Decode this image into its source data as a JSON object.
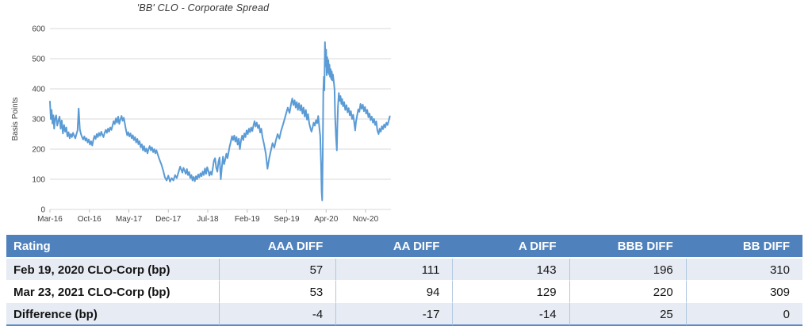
{
  "chart_data": {
    "type": "line",
    "title": "'BB' CLO - Corporate Spread",
    "xlabel": "",
    "ylabel": "Basis Points",
    "ylim": [
      0,
      600
    ],
    "yticks": [
      0,
      100,
      200,
      300,
      400,
      500,
      600
    ],
    "x_unit": "months since Mar-2016",
    "xlim": [
      0,
      60.5
    ],
    "xticks": [
      {
        "m": 0,
        "label": "Mar-16"
      },
      {
        "m": 7,
        "label": "Oct-16"
      },
      {
        "m": 14,
        "label": "May-17"
      },
      {
        "m": 21,
        "label": "Dec-17"
      },
      {
        "m": 28,
        "label": "Jul-18"
      },
      {
        "m": 35,
        "label": "Feb-19"
      },
      {
        "m": 42,
        "label": "Sep-19"
      },
      {
        "m": 49,
        "label": "Apr-20"
      },
      {
        "m": 56,
        "label": "Nov-20"
      }
    ],
    "grid": true,
    "legend_position": "none",
    "line_color": "#5B9BD5",
    "grid_color": "#D9D9D9",
    "tick_color": "#BFBFBF",
    "series": [
      {
        "name": "'BB' CLO - Corporate Spread (bp)",
        "points": [
          [
            0,
            358
          ],
          [
            0.15,
            300
          ],
          [
            0.3,
            330
          ],
          [
            0.45,
            285
          ],
          [
            0.6,
            312
          ],
          [
            0.75,
            268
          ],
          [
            0.9,
            300
          ],
          [
            1.1,
            312
          ],
          [
            1.3,
            278
          ],
          [
            1.5,
            295
          ],
          [
            1.7,
            308
          ],
          [
            1.9,
            268
          ],
          [
            2.1,
            295
          ],
          [
            2.3,
            252
          ],
          [
            2.5,
            280
          ],
          [
            2.7,
            258
          ],
          [
            2.9,
            272
          ],
          [
            3.1,
            242
          ],
          [
            3.3,
            256
          ],
          [
            3.5,
            236
          ],
          [
            3.7,
            250
          ],
          [
            3.9,
            240
          ],
          [
            4.1,
            254
          ],
          [
            4.3,
            244
          ],
          [
            4.5,
            236
          ],
          [
            4.7,
            250
          ],
          [
            4.9,
            262
          ],
          [
            5.1,
            335
          ],
          [
            5.3,
            265
          ],
          [
            5.5,
            250
          ],
          [
            5.7,
            240
          ],
          [
            5.9,
            232
          ],
          [
            6.1,
            242
          ],
          [
            6.3,
            228
          ],
          [
            6.5,
            236
          ],
          [
            6.7,
            222
          ],
          [
            6.9,
            232
          ],
          [
            7.1,
            215
          ],
          [
            7.3,
            226
          ],
          [
            7.5,
            212
          ],
          [
            7.7,
            230
          ],
          [
            7.9,
            244
          ],
          [
            8.1,
            234
          ],
          [
            8.3,
            250
          ],
          [
            8.5,
            240
          ],
          [
            8.7,
            254
          ],
          [
            8.9,
            244
          ],
          [
            9.1,
            258
          ],
          [
            9.3,
            248
          ],
          [
            9.5,
            240
          ],
          [
            9.7,
            254
          ],
          [
            9.9,
            264
          ],
          [
            10.1,
            254
          ],
          [
            10.3,
            268
          ],
          [
            10.5,
            258
          ],
          [
            10.7,
            272
          ],
          [
            10.9,
            264
          ],
          [
            11.1,
            278
          ],
          [
            11.3,
            293
          ],
          [
            11.5,
            283
          ],
          [
            11.7,
            302
          ],
          [
            11.9,
            288
          ],
          [
            12.1,
            308
          ],
          [
            12.3,
            284
          ],
          [
            12.5,
            298
          ],
          [
            12.7,
            310
          ],
          [
            12.9,
            294
          ],
          [
            13.1,
            304
          ],
          [
            13.3,
            284
          ],
          [
            13.5,
            262
          ],
          [
            13.7,
            246
          ],
          [
            13.9,
            256
          ],
          [
            14.1,
            242
          ],
          [
            14.3,
            252
          ],
          [
            14.5,
            236
          ],
          [
            14.7,
            246
          ],
          [
            14.9,
            230
          ],
          [
            15.1,
            240
          ],
          [
            15.3,
            222
          ],
          [
            15.5,
            234
          ],
          [
            15.7,
            216
          ],
          [
            15.9,
            226
          ],
          [
            16.1,
            206
          ],
          [
            16.3,
            216
          ],
          [
            16.5,
            196
          ],
          [
            16.7,
            210
          ],
          [
            16.9,
            192
          ],
          [
            17.1,
            202
          ],
          [
            17.3,
            186
          ],
          [
            17.5,
            200
          ],
          [
            17.7,
            210
          ],
          [
            17.9,
            196
          ],
          [
            18.1,
            206
          ],
          [
            18.3,
            190
          ],
          [
            18.5,
            200
          ],
          [
            18.7,
            186
          ],
          [
            18.9,
            196
          ],
          [
            19.2,
            178
          ],
          [
            19.5,
            162
          ],
          [
            19.8,
            148
          ],
          [
            20.1,
            128
          ],
          [
            20.4,
            106
          ],
          [
            20.7,
            96
          ],
          [
            21,
            112
          ],
          [
            21.3,
            92
          ],
          [
            21.6,
            104
          ],
          [
            21.9,
            96
          ],
          [
            22.2,
            114
          ],
          [
            22.5,
            104
          ],
          [
            22.8,
            122
          ],
          [
            23.1,
            142
          ],
          [
            23.3,
            132
          ],
          [
            23.5,
            122
          ],
          [
            23.7,
            138
          ],
          [
            23.9,
            128
          ],
          [
            24.1,
            118
          ],
          [
            24.3,
            134
          ],
          [
            24.5,
            114
          ],
          [
            24.7,
            124
          ],
          [
            24.9,
            104
          ],
          [
            25.1,
            114
          ],
          [
            25.3,
            96
          ],
          [
            25.5,
            108
          ],
          [
            25.7,
            94
          ],
          [
            25.9,
            110
          ],
          [
            26.1,
            100
          ],
          [
            26.3,
            116
          ],
          [
            26.5,
            106
          ],
          [
            26.7,
            120
          ],
          [
            26.9,
            110
          ],
          [
            27.1,
            126
          ],
          [
            27.3,
            114
          ],
          [
            27.5,
            136
          ],
          [
            27.7,
            118
          ],
          [
            27.9,
            140
          ],
          [
            28.1,
            128
          ],
          [
            28.3,
            112
          ],
          [
            28.5,
            125
          ],
          [
            28.7,
            115
          ],
          [
            28.9,
            138
          ],
          [
            29.1,
            162
          ],
          [
            29.3,
            170
          ],
          [
            29.5,
            138
          ],
          [
            29.7,
            125
          ],
          [
            29.9,
            158
          ],
          [
            30.1,
            172
          ],
          [
            30.3,
            100
          ],
          [
            30.5,
            140
          ],
          [
            30.7,
            175
          ],
          [
            30.9,
            150
          ],
          [
            31.1,
            165
          ],
          [
            31.3,
            185
          ],
          [
            31.5,
            170
          ],
          [
            31.7,
            190
          ],
          [
            31.9,
            210
          ],
          [
            32.1,
            225
          ],
          [
            32.3,
            243
          ],
          [
            32.5,
            230
          ],
          [
            32.7,
            245
          ],
          [
            32.9,
            225
          ],
          [
            33.1,
            240
          ],
          [
            33.3,
            215
          ],
          [
            33.5,
            235
          ],
          [
            33.7,
            200
          ],
          [
            33.9,
            228
          ],
          [
            34.1,
            245
          ],
          [
            34.3,
            230
          ],
          [
            34.5,
            252
          ],
          [
            34.7,
            240
          ],
          [
            34.9,
            262
          ],
          [
            35.1,
            250
          ],
          [
            35.3,
            268
          ],
          [
            35.5,
            256
          ],
          [
            35.7,
            272
          ],
          [
            35.9,
            260
          ],
          [
            36.1,
            278
          ],
          [
            36.3,
            293
          ],
          [
            36.5,
            275
          ],
          [
            36.7,
            288
          ],
          [
            36.9,
            270
          ],
          [
            37.1,
            280
          ],
          [
            37.3,
            255
          ],
          [
            37.5,
            268
          ],
          [
            37.7,
            240
          ],
          [
            38,
            215
          ],
          [
            38.3,
            185
          ],
          [
            38.6,
            135
          ],
          [
            38.9,
            170
          ],
          [
            39.2,
            195
          ],
          [
            39.5,
            220
          ],
          [
            39.8,
            205
          ],
          [
            40.1,
            230
          ],
          [
            40.4,
            250
          ],
          [
            40.7,
            235
          ],
          [
            41,
            260
          ],
          [
            41.3,
            278
          ],
          [
            41.6,
            298
          ],
          [
            41.9,
            318
          ],
          [
            42.2,
            338
          ],
          [
            42.5,
            320
          ],
          [
            42.8,
            352
          ],
          [
            43,
            368
          ],
          [
            43.2,
            346
          ],
          [
            43.4,
            362
          ],
          [
            43.6,
            338
          ],
          [
            43.8,
            356
          ],
          [
            44,
            330
          ],
          [
            44.2,
            352
          ],
          [
            44.4,
            328
          ],
          [
            44.6,
            346
          ],
          [
            44.8,
            318
          ],
          [
            45,
            338
          ],
          [
            45.2,
            308
          ],
          [
            45.4,
            330
          ],
          [
            45.6,
            298
          ],
          [
            45.8,
            316
          ],
          [
            46,
            286
          ],
          [
            46.2,
            270
          ],
          [
            46.4,
            258
          ],
          [
            46.6,
            272
          ],
          [
            46.8,
            288
          ],
          [
            47,
            278
          ],
          [
            47.2,
            296
          ],
          [
            47.4,
            286
          ],
          [
            47.6,
            310
          ],
          [
            47.8,
            272
          ],
          [
            47.95,
            245
          ],
          [
            48.1,
            150
          ],
          [
            48.2,
            60
          ],
          [
            48.3,
            30
          ],
          [
            48.4,
            180
          ],
          [
            48.5,
            390
          ],
          [
            48.6,
            440
          ],
          [
            48.7,
            395
          ],
          [
            48.8,
            555
          ],
          [
            48.9,
            475
          ],
          [
            49,
            530
          ],
          [
            49.1,
            445
          ],
          [
            49.2,
            505
          ],
          [
            49.3,
            455
          ],
          [
            49.4,
            495
          ],
          [
            49.5,
            448
          ],
          [
            49.6,
            480
          ],
          [
            49.7,
            440
          ],
          [
            49.8,
            465
          ],
          [
            49.9,
            432
          ],
          [
            50,
            458
          ],
          [
            50.1,
            428
          ],
          [
            50.2,
            448
          ],
          [
            50.35,
            425
          ],
          [
            50.5,
            398
          ],
          [
            50.6,
            310
          ],
          [
            50.75,
            242
          ],
          [
            50.9,
            196
          ],
          [
            51,
            282
          ],
          [
            51.1,
            340
          ],
          [
            51.25,
            386
          ],
          [
            51.4,
            360
          ],
          [
            51.55,
            376
          ],
          [
            51.7,
            350
          ],
          [
            51.85,
            366
          ],
          [
            52,
            342
          ],
          [
            52.2,
            356
          ],
          [
            52.4,
            330
          ],
          [
            52.6,
            346
          ],
          [
            52.8,
            322
          ],
          [
            53,
            336
          ],
          [
            53.2,
            312
          ],
          [
            53.4,
            326
          ],
          [
            53.6,
            300
          ],
          [
            53.8,
            314
          ],
          [
            54,
            286
          ],
          [
            54.15,
            262
          ],
          [
            54.3,
            290
          ],
          [
            54.5,
            312
          ],
          [
            54.7,
            332
          ],
          [
            54.9,
            324
          ],
          [
            55.1,
            350
          ],
          [
            55.3,
            334
          ],
          [
            55.5,
            348
          ],
          [
            55.7,
            326
          ],
          [
            55.9,
            340
          ],
          [
            56.1,
            318
          ],
          [
            56.3,
            330
          ],
          [
            56.5,
            306
          ],
          [
            56.7,
            318
          ],
          [
            56.9,
            296
          ],
          [
            57.1,
            308
          ],
          [
            57.3,
            288
          ],
          [
            57.5,
            300
          ],
          [
            57.7,
            280
          ],
          [
            57.9,
            292
          ],
          [
            58.1,
            262
          ],
          [
            58.3,
            250
          ],
          [
            58.5,
            268
          ],
          [
            58.7,
            258
          ],
          [
            58.9,
            276
          ],
          [
            59.1,
            266
          ],
          [
            59.3,
            282
          ],
          [
            59.5,
            272
          ],
          [
            59.7,
            288
          ],
          [
            59.9,
            280
          ],
          [
            60.1,
            294
          ],
          [
            60.3,
            309
          ]
        ]
      }
    ]
  },
  "table": {
    "header_bg": "#4F81BD",
    "band_bg": "#E7ECF4",
    "divider_color": "#AFC7E2",
    "bottom_border_color": "#5B8AC2",
    "columns": [
      "Rating",
      "AAA DIFF",
      "AA DIFF",
      "A DIFF",
      "BBB DIFF",
      "BB DIFF"
    ],
    "rows": [
      {
        "label": "Feb 19, 2020 CLO-Corp (bp)",
        "values": [
          "57",
          "111",
          "143",
          "196",
          "310"
        ]
      },
      {
        "label": "Mar 23, 2021 CLO-Corp (bp)",
        "values": [
          "53",
          "94",
          "129",
          "220",
          "309"
        ]
      },
      {
        "label": "Difference (bp)",
        "values": [
          "-4",
          "-17",
          "-14",
          "25",
          "0"
        ]
      }
    ]
  }
}
